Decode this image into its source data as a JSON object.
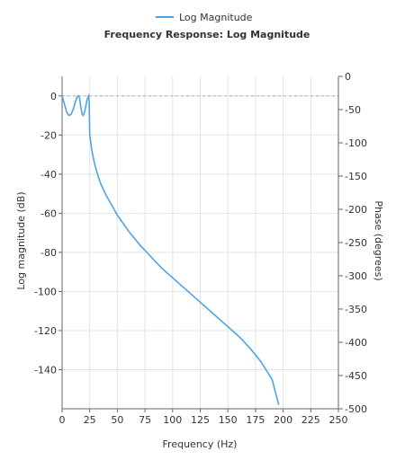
{
  "chart_data": {
    "type": "line",
    "title": "Frequency Response: Log Magnitude",
    "legend": {
      "position": "top-center",
      "entries": [
        "Log Magnitude"
      ]
    },
    "xlabel": "Frequency (Hz)",
    "ylabel": "Log magnitude (dB)",
    "y2label": "Phase (degrees)",
    "xlim": [
      0,
      250
    ],
    "ylim": [
      -160,
      10
    ],
    "y2lim": [
      -500,
      0
    ],
    "xticks": [
      0,
      25,
      50,
      75,
      100,
      125,
      150,
      175,
      200,
      225,
      250
    ],
    "yticks": [
      0,
      -20,
      -40,
      -60,
      -80,
      -100,
      -120,
      -140
    ],
    "y2ticks": [
      0,
      -50,
      -100,
      -150,
      -200,
      -250,
      -300,
      -350,
      -400,
      -450,
      -500
    ],
    "grid": true,
    "reference_line": {
      "y": 0,
      "style": "dashed"
    },
    "series": [
      {
        "name": "Log Magnitude",
        "color": "#4da3e6",
        "axis": "left",
        "x": [
          0,
          2,
          4,
          6,
          8,
          10,
          12,
          13.5,
          15,
          15.5,
          16,
          17,
          18,
          19,
          20,
          21,
          22,
          23,
          24,
          24.5,
          25,
          26,
          27,
          28,
          30,
          32,
          35,
          40,
          45,
          50,
          55,
          60,
          70,
          80,
          90,
          100,
          110,
          120,
          130,
          140,
          150,
          160,
          170,
          180,
          190,
          196
        ],
        "y": [
          0,
          -4,
          -8,
          -10,
          -9.5,
          -7,
          -3,
          -0.7,
          0,
          -0.5,
          -2,
          -6,
          -9,
          -10,
          -9,
          -6.5,
          -3.5,
          -1.2,
          0,
          -3,
          -20,
          -24,
          -28,
          -31,
          -36,
          -40,
          -45,
          -51,
          -56,
          -61,
          -65,
          -69,
          -76,
          -82,
          -88,
          -93,
          -98,
          -103,
          -108,
          -113,
          -118,
          -123,
          -129,
          -136,
          -145,
          -158
        ]
      }
    ]
  }
}
